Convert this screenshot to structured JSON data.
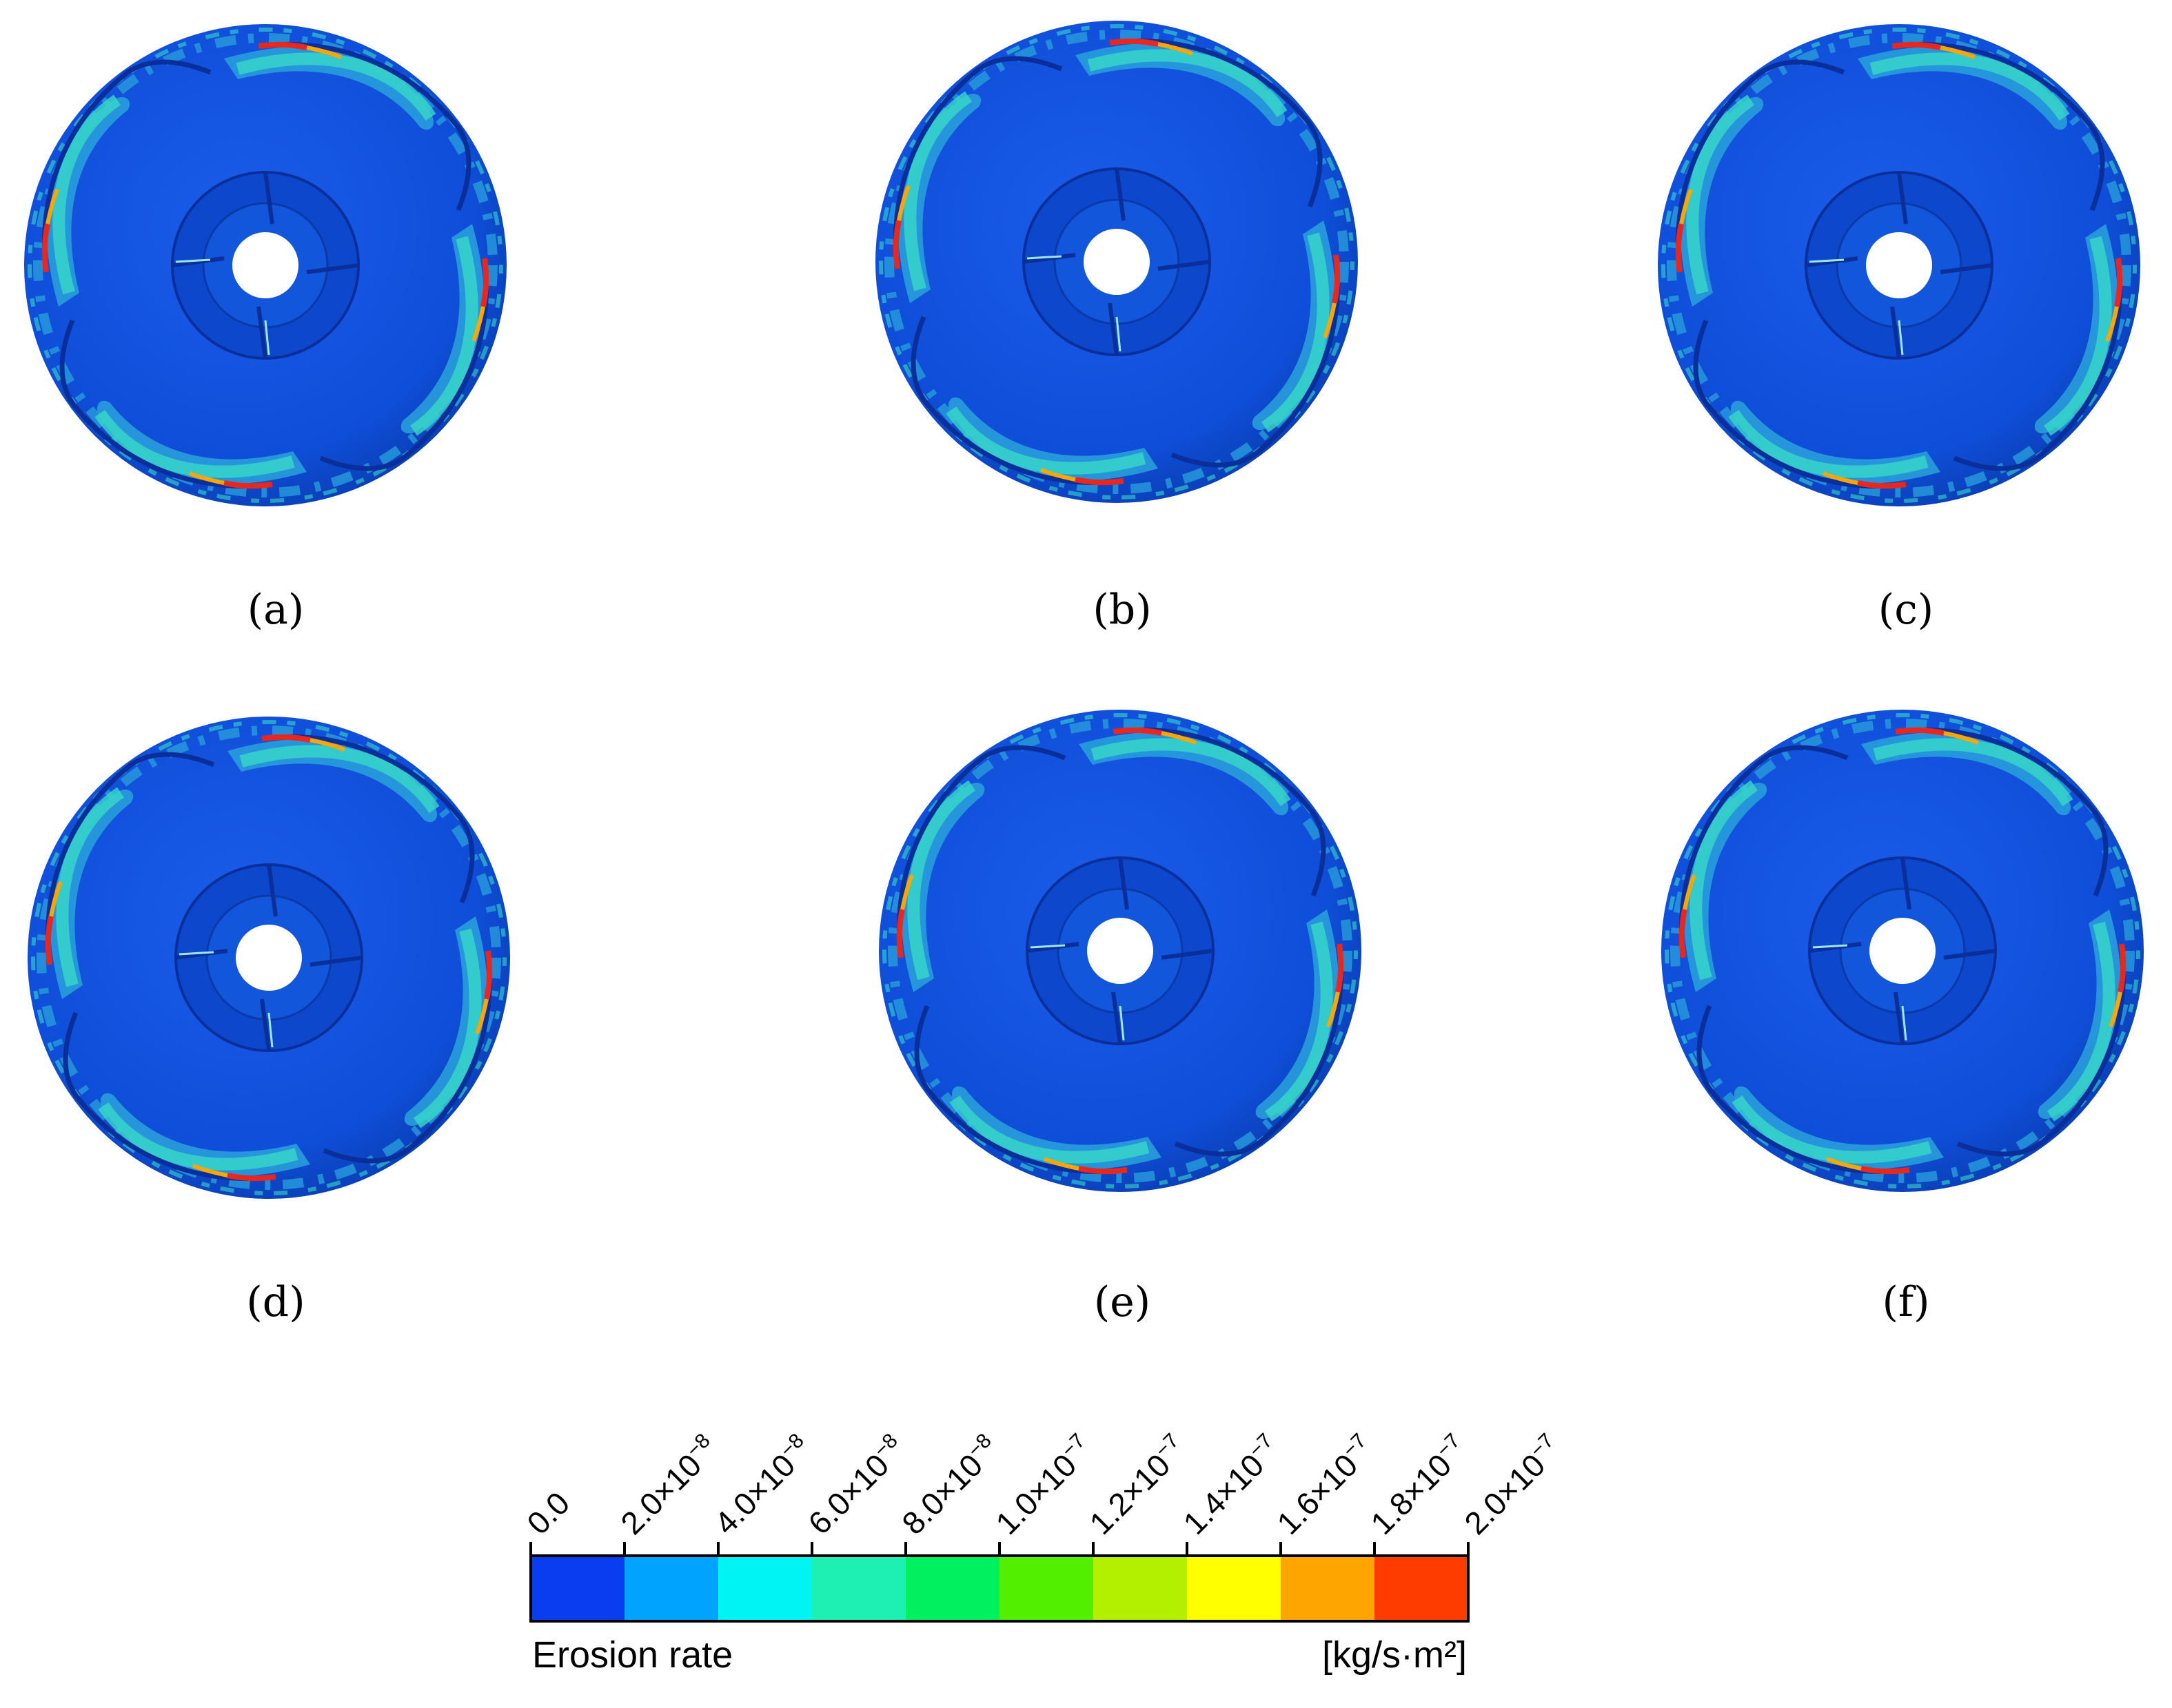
{
  "figure": {
    "panels": [
      {
        "caption": "(a)"
      },
      {
        "caption": "(b)"
      },
      {
        "caption": "(c)"
      },
      {
        "caption": "(d)"
      },
      {
        "caption": "(e)"
      },
      {
        "caption": "(f)"
      }
    ],
    "colorbar": {
      "title": "Erosion rate",
      "unit": "[kg/s·m²]",
      "ticks": [
        {
          "base": "0.0",
          "exp": ""
        },
        {
          "base": "2.0×10",
          "exp": "−8"
        },
        {
          "base": "4.0×10",
          "exp": "−8"
        },
        {
          "base": "6.0×10",
          "exp": "−8"
        },
        {
          "base": "8.0×10",
          "exp": "−8"
        },
        {
          "base": "1.0×10",
          "exp": "−7"
        },
        {
          "base": "1.2×10",
          "exp": "−7"
        },
        {
          "base": "1.4×10",
          "exp": "−7"
        },
        {
          "base": "1.6×10",
          "exp": "−7"
        },
        {
          "base": "1.8×10",
          "exp": "−7"
        },
        {
          "base": "2.0×10",
          "exp": "−7"
        }
      ],
      "colors": [
        "#0a3cf0",
        "#00a4ff",
        "#00f4f4",
        "#1ef0b4",
        "#00f060",
        "#52f000",
        "#b2f000",
        "#ffff00",
        "#ffa500",
        "#ff3c00"
      ]
    },
    "impeller_colors": {
      "base": "#0f4ed8",
      "dark": "#0a2f9a",
      "band": "#2aa2dc",
      "band_light": "#38d8c8",
      "hot": "#e8281e",
      "hub": "#ffffff"
    }
  }
}
